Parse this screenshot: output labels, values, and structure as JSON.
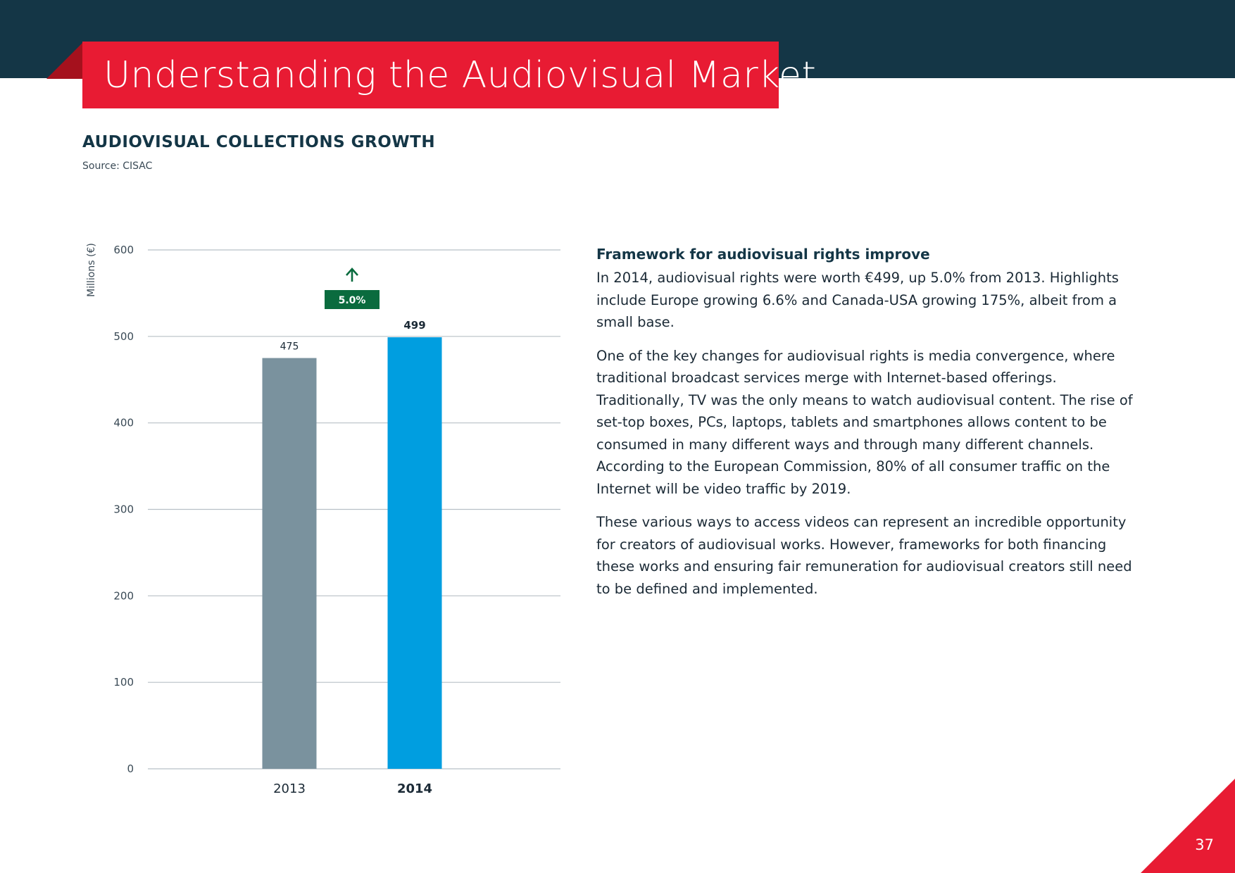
{
  "header": {
    "title": "Understanding the Audiovisual Market"
  },
  "chart_section": {
    "title": "AUDIOVISUAL COLLECTIONS GROWTH",
    "source": "Source: CISAC"
  },
  "chart_data": {
    "type": "bar",
    "title": "AUDIOVISUAL COLLECTIONS GROWTH",
    "xlabel": "",
    "ylabel": "Millions (€)",
    "ylim": [
      0,
      600
    ],
    "yticks": [
      0,
      100,
      200,
      300,
      400,
      500,
      600
    ],
    "grid": true,
    "categories": [
      "2013",
      "2014"
    ],
    "values": [
      475,
      499
    ],
    "data_labels": [
      "475",
      "499"
    ],
    "bar_colors": [
      "#7a929e",
      "#009ee0"
    ],
    "growth_badge": {
      "label": "5.0%",
      "color": "#0a6b3e",
      "icon": "arrow-up-icon"
    }
  },
  "article": {
    "heading": "Framework for audiovisual rights improve",
    "paragraphs": [
      "In 2014, audiovisual rights were worth €499, up 5.0% from 2013. Highlights include Europe growing 6.6% and Canada-USA growing 175%, albeit from a small base.",
      "One of the key changes for audiovisual rights is media convergence, where traditional broadcast services merge with Internet-based offerings. Traditionally, TV was the only means to watch audiovisual content. The rise of set-top boxes, PCs, laptops, tablets and smartphones allows content to be consumed in many different ways and through many different channels. According to the European Commission, 80% of all consumer traffic on the Internet will be video traffic by 2019.",
      "These various ways to access videos can represent an incredible opportunity for creators of audiovisual works. However, frameworks for both financing these works and ensuring fair remuneration for audiovisual creators still need to be defined and implemented."
    ]
  },
  "footer": {
    "page_number": "37"
  },
  "colors": {
    "navy": "#143646",
    "red": "#e81b33",
    "dark_red": "#a5111d",
    "grid": "#b8c0c6"
  }
}
